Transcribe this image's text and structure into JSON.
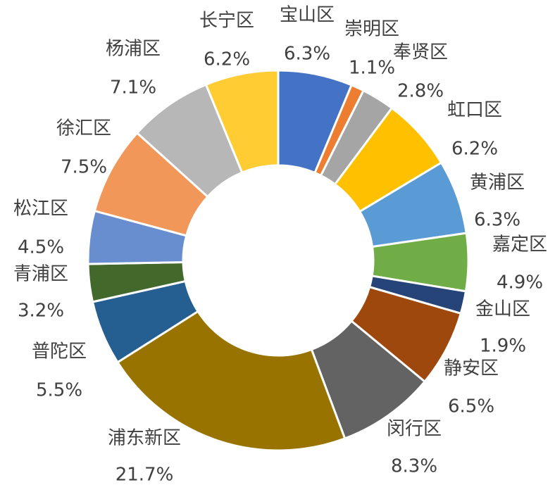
{
  "chart_data": {
    "type": "donut",
    "categories": [
      "宝山区",
      "崇明区",
      "奉贤区",
      "虹口区",
      "黄浦区",
      "嘉定区",
      "金山区",
      "静安区",
      "闵行区",
      "浦东新区",
      "普陀区",
      "青浦区",
      "松江区",
      "徐汇区",
      "杨浦区",
      "长宁区"
    ],
    "values": [
      6.3,
      1.1,
      2.8,
      6.2,
      6.3,
      4.9,
      1.9,
      6.5,
      8.3,
      21.7,
      5.5,
      3.2,
      4.5,
      7.5,
      7.1,
      6.2
    ],
    "value_labels": [
      "6.3%",
      "1.1%",
      "2.8%",
      "6.2%",
      "6.3%",
      "4.9%",
      "1.9%",
      "6.5%",
      "8.3%",
      "21.7%",
      "5.5%",
      "3.2%",
      "4.5%",
      "7.5%",
      "7.1%",
      "6.2%"
    ],
    "colors": [
      "#4472c4",
      "#ed7d31",
      "#a5a5a5",
      "#ffc000",
      "#5b9bd5",
      "#70ad47",
      "#264478",
      "#9e480e",
      "#636363",
      "#997300",
      "#255e91",
      "#43682b",
      "#698ed0",
      "#f1975a",
      "#b7b7b7",
      "#ffcd33"
    ]
  }
}
